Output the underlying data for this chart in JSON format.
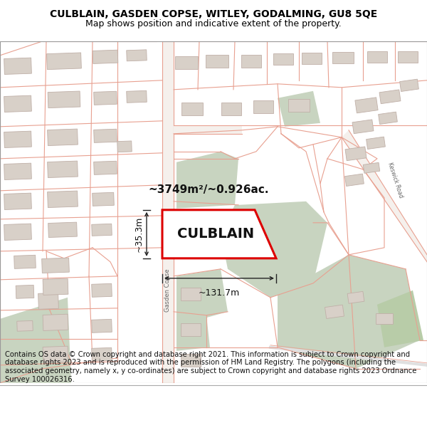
{
  "title": "CULBLAIN, GASDEN COPSE, WITLEY, GODALMING, GU8 5QE",
  "subtitle": "Map shows position and indicative extent of the property.",
  "footer": "Contains OS data © Crown copyright and database right 2021. This information is subject to Crown copyright and database rights 2023 and is reproduced with the permission of HM Land Registry. The polygons (including the associated geometry, namely x, y co-ordinates) are subject to Crown copyright and database rights 2023 Ordnance Survey 100026316.",
  "property_name": "CULBLAIN",
  "area_text": "~3749m²/~0.926ac.",
  "width_text": "~131.7m",
  "height_text": "~35.3m",
  "road_label": "Gasden Copse",
  "road_label2": "Keswick Road",
  "map_bg": "#f7f4f0",
  "line_color": "#e8a090",
  "building_fill": "#d8d0c8",
  "building_edge": "#c8b8b0",
  "green_fill": "#c8d4c0",
  "property_fill": "#ffffff",
  "property_border": "#dd0000",
  "title_fontsize": 10,
  "subtitle_fontsize": 9,
  "footer_fontsize": 7.2,
  "annot_fontsize": 11,
  "prop_label_fontsize": 14,
  "dim_fontsize": 9
}
